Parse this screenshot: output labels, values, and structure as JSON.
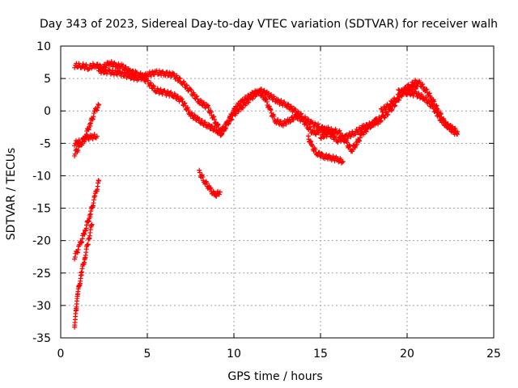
{
  "chart_data": {
    "type": "scatter",
    "title": "Day 343 of 2023, Sidereal Day-to-day VTEC variation (SDTVAR) for receiver walh",
    "xlabel": "GPS time / hours",
    "ylabel": "SDTVAR / TECUs",
    "xlim": [
      0,
      25
    ],
    "ylim": [
      -35,
      10
    ],
    "xticks": [
      0,
      5,
      10,
      15,
      20,
      25
    ],
    "yticks": [
      10,
      5,
      0,
      -5,
      -10,
      -15,
      -20,
      -25,
      -30,
      -35
    ],
    "grid": true,
    "marker": "+",
    "color": "#ff0000",
    "series": [
      {
        "name": "s1",
        "points": [
          [
            0.8,
            7.0
          ],
          [
            1.2,
            7.0
          ],
          [
            1.6,
            6.7
          ],
          [
            2.0,
            7.1
          ],
          [
            2.4,
            6.6
          ],
          [
            2.8,
            7.4
          ],
          [
            3.2,
            7.0
          ],
          [
            3.6,
            6.8
          ],
          [
            4.0,
            6.0
          ],
          [
            4.4,
            5.8
          ]
        ]
      },
      {
        "name": "s2",
        "points": [
          [
            2.2,
            6.2
          ],
          [
            2.8,
            6.0
          ],
          [
            3.4,
            5.8
          ],
          [
            4.0,
            5.3
          ],
          [
            4.5,
            5.0
          ],
          [
            5.0,
            5.6
          ],
          [
            5.5,
            5.9
          ],
          [
            6.0,
            5.8
          ],
          [
            6.5,
            5.5
          ],
          [
            7.0,
            4.5
          ],
          [
            7.5,
            3.0
          ],
          [
            8.0,
            1.5
          ],
          [
            8.5,
            0.5
          ],
          [
            9.0,
            -2.0
          ],
          [
            9.3,
            -3.5
          ]
        ]
      },
      {
        "name": "s3",
        "points": [
          [
            4.5,
            5.8
          ],
          [
            5.0,
            4.5
          ],
          [
            5.5,
            3.2
          ],
          [
            6.0,
            2.8
          ],
          [
            6.5,
            2.5
          ],
          [
            7.0,
            1.5
          ],
          [
            7.5,
            -0.5
          ],
          [
            8.0,
            -1.5
          ],
          [
            8.5,
            -2.3
          ],
          [
            9.0,
            -3.0
          ],
          [
            9.3,
            -3.6
          ]
        ]
      },
      {
        "name": "s4",
        "points": [
          [
            0.8,
            -6.6
          ],
          [
            1.1,
            -5.5
          ],
          [
            1.4,
            -4.0
          ],
          [
            1.7,
            -2.0
          ],
          [
            2.0,
            0.0
          ],
          [
            2.2,
            0.9
          ]
        ]
      },
      {
        "name": "s5",
        "points": [
          [
            0.8,
            -5.0
          ],
          [
            1.2,
            -4.7
          ],
          [
            1.5,
            -4.2
          ],
          [
            1.8,
            -4.0
          ],
          [
            2.1,
            -3.9
          ]
        ]
      },
      {
        "name": "s6",
        "points": [
          [
            0.8,
            -22.5
          ],
          [
            1.1,
            -20.8
          ],
          [
            1.4,
            -18.5
          ],
          [
            1.7,
            -16.0
          ],
          [
            2.0,
            -13.0
          ],
          [
            2.2,
            -10.8
          ]
        ]
      },
      {
        "name": "s7",
        "points": [
          [
            0.8,
            -33.0
          ],
          [
            0.9,
            -30.5
          ],
          [
            1.0,
            -28.0
          ],
          [
            1.2,
            -25.0
          ],
          [
            1.4,
            -22.5
          ],
          [
            1.6,
            -20.0
          ],
          [
            1.8,
            -17.5
          ]
        ]
      },
      {
        "name": "s8",
        "points": [
          [
            8.0,
            -9.5
          ],
          [
            8.3,
            -10.8
          ],
          [
            8.6,
            -12.0
          ],
          [
            8.9,
            -13.0
          ],
          [
            9.2,
            -12.5
          ]
        ]
      },
      {
        "name": "s9",
        "points": [
          [
            9.2,
            -3.6
          ],
          [
            9.5,
            -2.5
          ],
          [
            9.8,
            -1.0
          ],
          [
            10.1,
            0.5
          ],
          [
            10.5,
            1.5
          ],
          [
            11.0,
            2.5
          ],
          [
            11.4,
            3.0
          ],
          [
            11.8,
            2.0
          ],
          [
            12.1,
            0.0
          ],
          [
            12.4,
            -1.5
          ],
          [
            12.8,
            -2.0
          ],
          [
            13.2,
            -1.5
          ],
          [
            13.6,
            -0.8
          ],
          [
            14.0,
            -1.5
          ],
          [
            14.3,
            -2.5
          ],
          [
            14.6,
            -3.5
          ],
          [
            15.0,
            -3.0
          ],
          [
            15.4,
            -2.8
          ],
          [
            15.8,
            -3.3
          ]
        ]
      },
      {
        "name": "s10",
        "points": [
          [
            9.3,
            -3.0
          ],
          [
            9.6,
            -2.0
          ],
          [
            10.0,
            -0.5
          ],
          [
            10.5,
            0.8
          ],
          [
            11.0,
            2.0
          ],
          [
            11.5,
            3.2
          ],
          [
            12.0,
            2.5
          ],
          [
            12.5,
            1.5
          ],
          [
            13.0,
            1.0
          ],
          [
            13.5,
            0.0
          ],
          [
            14.0,
            -1.0
          ],
          [
            14.5,
            -2.0
          ],
          [
            15.0,
            -2.5
          ],
          [
            15.5,
            -3.5
          ],
          [
            16.0,
            -4.5
          ],
          [
            16.5,
            -4.0
          ],
          [
            17.0,
            -3.3
          ],
          [
            17.5,
            -2.5
          ],
          [
            18.0,
            -2.0
          ],
          [
            18.5,
            -1.5
          ]
        ]
      },
      {
        "name": "s11",
        "points": [
          [
            14.3,
            -4.0
          ],
          [
            14.5,
            -5.5
          ],
          [
            14.8,
            -6.5
          ],
          [
            15.2,
            -7.0
          ],
          [
            15.6,
            -7.2
          ],
          [
            16.0,
            -7.5
          ],
          [
            16.3,
            -7.8
          ]
        ]
      },
      {
        "name": "s12",
        "points": [
          [
            15.0,
            -4.0
          ],
          [
            15.5,
            -3.5
          ],
          [
            16.0,
            -3.0
          ],
          [
            16.5,
            -5.0
          ],
          [
            16.8,
            -6.0
          ],
          [
            17.1,
            -5.0
          ],
          [
            17.4,
            -3.5
          ],
          [
            17.8,
            -2.5
          ],
          [
            18.2,
            -1.5
          ],
          [
            18.6,
            -1.0
          ],
          [
            19.0,
            0.0
          ],
          [
            19.4,
            1.5
          ],
          [
            19.8,
            3.0
          ],
          [
            20.2,
            3.5
          ],
          [
            20.6,
            3.8
          ]
        ]
      },
      {
        "name": "s13",
        "points": [
          [
            18.5,
            0.0
          ],
          [
            19.0,
            1.0
          ],
          [
            19.4,
            2.0
          ],
          [
            19.8,
            3.2
          ],
          [
            20.2,
            4.0
          ],
          [
            20.6,
            4.6
          ],
          [
            21.0,
            3.5
          ],
          [
            21.4,
            2.0
          ],
          [
            21.8,
            0.0
          ],
          [
            22.2,
            -2.0
          ],
          [
            22.6,
            -2.7
          ],
          [
            22.9,
            -3.2
          ]
        ]
      },
      {
        "name": "s14",
        "points": [
          [
            19.5,
            3.0
          ],
          [
            20.0,
            2.8
          ],
          [
            20.5,
            2.6
          ],
          [
            21.0,
            2.0
          ],
          [
            21.5,
            0.5
          ],
          [
            22.0,
            -1.5
          ],
          [
            22.5,
            -2.8
          ],
          [
            22.9,
            -3.6
          ]
        ]
      }
    ]
  }
}
